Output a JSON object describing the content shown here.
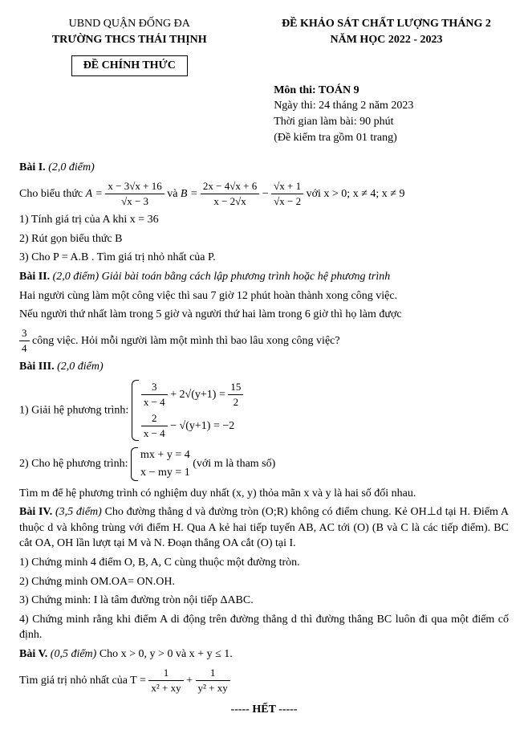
{
  "header": {
    "district": "UBND QUẬN ĐỐNG ĐA",
    "school": "TRƯỜNG THCS THÁI THỊNH",
    "exam_title": "ĐỀ KHẢO SÁT CHẤT LƯỢNG THÁNG 2",
    "year": "NĂM HỌC 2022 - 2023",
    "official": "ĐỀ CHÍNH THỨC",
    "subject": "Môn thi: TOÁN 9",
    "date": "Ngày thi: 24 tháng 2 năm 2023",
    "duration": "Thời gian làm bài: 90 phút",
    "pages": "(Đề kiểm tra gồm 01 trang)"
  },
  "bai1": {
    "title": "Bài I.",
    "points": "(2,0 điểm)",
    "intro": "Cho biểu thức",
    "A_label": "A =",
    "A_num": "x − 3√x + 16",
    "A_den": "√x − 3",
    "and": "và",
    "B_label": "B =",
    "B1_num": "2x − 4√x + 6",
    "B1_den": "x − 2√x",
    "minus": "−",
    "B2_num": "√x + 1",
    "B2_den": "√x − 2",
    "cond": "với x > 0; x ≠ 4; x ≠ 9",
    "q1": "1) Tính giá trị của A khi x = 36",
    "q2": "2) Rút gọn biểu thức B",
    "q3": "3) Cho P = A.B . Tìm giá trị nhỏ nhất của P."
  },
  "bai2": {
    "title": "Bài II.",
    "points": "(2,0 điểm) Giải bài toán bằng cách lập phương trình hoặc hệ phương trình",
    "p1": "Hai người cùng làm một công việc thì sau 7 giờ 12 phút hoàn thành xong công việc.",
    "p2a": "Nếu người thứ nhất làm trong 5 giờ và người thứ hai làm trong 6 giờ thì họ làm được",
    "frac_num": "3",
    "frac_den": "4",
    "p2b": "công việc. Hỏi mỗi người làm một mình thì bao lâu xong công việc?"
  },
  "bai3": {
    "title": "Bài III.",
    "points": "(2,0 điểm)",
    "q1": "1) Giải hệ phương trình:",
    "r1a_num": "3",
    "r1a_den": "x − 4",
    "r1a_mid": "+ 2√(y+1) =",
    "r1a_rhs_num": "15",
    "r1a_rhs_den": "2",
    "r1b_num": "2",
    "r1b_den": "x − 4",
    "r1b_mid": "− √(y+1) = −2",
    "q2": "2) Cho hệ phương trình:",
    "r2a": "mx + y = 4",
    "r2b": "x − my = 1",
    "q2_note": "(với m là tham số)",
    "p3": "Tìm m để hệ phương trình có nghiệm duy nhất (x, y) thỏa mãn x và y là hai số đối nhau."
  },
  "bai4": {
    "title": "Bài IV.",
    "points": "(3,5 điểm)",
    "intro": "Cho đường thẳng d và đường tròn (O;R) không có điểm chung. Kẻ OH⊥d tại H. Điểm A thuộc d và không trùng với điểm H. Qua A kẻ hai tiếp tuyến AB, AC tới (O) (B và C là các tiếp điểm). BC cắt OA, OH lần lượt tại M và N. Đoạn thẳng OA cắt (O) tại I.",
    "q1": "1) Chứng minh 4 điểm O, B, A, C cùng thuộc một đường tròn.",
    "q2": "2) Chứng minh OM.OA= ON.OH.",
    "q3": "3) Chứng minh: I là tâm đường tròn nội tiếp ΔABC.",
    "q4": "4) Chứng minh rằng khi điểm A di động trên đường thẳng d thì đường thẳng BC luôn đi qua một điểm cố định."
  },
  "bai5": {
    "title": "Bài V.",
    "points": "(0,5 điểm)",
    "cond": "Cho x > 0, y > 0 và x + y ≤ 1.",
    "p1": "Tìm giá trị nhỏ nhất của T =",
    "t1_num": "1",
    "t1_den": "x² + xy",
    "plus": "+",
    "t2_num": "1",
    "t2_den": "y² + xy"
  },
  "footer": "----- HẾT -----"
}
